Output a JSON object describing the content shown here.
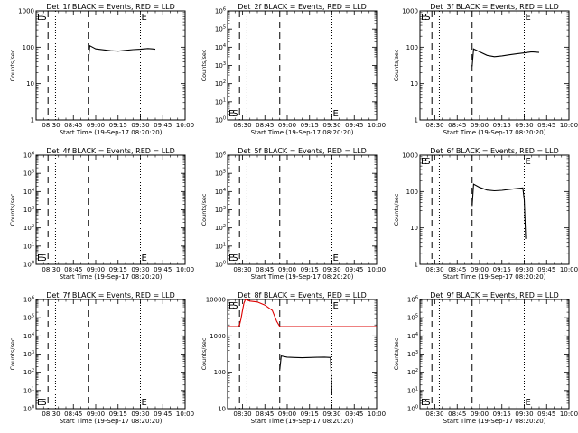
{
  "chart_data": [
    {
      "type": "line",
      "title": "Det_1f BLACK = Events, RED = LLD",
      "xlabel": "Start Time (19-Sep-17 08:20:20)",
      "ylabel": "Counts/sec",
      "yscale": "log",
      "ylim": [
        1,
        1000
      ],
      "yticks": [
        1,
        10,
        100,
        1000
      ],
      "ytick_labels": [
        "1",
        "10",
        "100",
        "1000"
      ],
      "xticks": [
        30,
        45,
        60,
        75,
        90,
        105,
        120
      ],
      "xtick_labels": [
        "08:30",
        "08:45",
        "09:00",
        "09:15",
        "09:30",
        "09:45",
        "10:00"
      ],
      "xlim": [
        20,
        120
      ],
      "dashed_lines": [
        28,
        55
      ],
      "dotted_lines": [
        33,
        90
      ],
      "S": 28,
      "E": 90,
      "S_low": false,
      "E_low": false,
      "series": [
        {
          "color": "#000000",
          "x": [
            55,
            56,
            60,
            65,
            70,
            75,
            80,
            85,
            90,
            95,
            98,
            100
          ],
          "y": [
            40,
            110,
            90,
            85,
            80,
            78,
            82,
            86,
            88,
            92,
            90,
            88
          ]
        }
      ]
    },
    {
      "type": "line",
      "title": "Det_2f BLACK = Events, RED = LLD",
      "xlabel": "Start Time (19-Sep-17 08:20:20)",
      "ylabel": "Counts/sec",
      "yscale": "log",
      "ylim": [
        1,
        1000000
      ],
      "yticks": [
        1,
        10,
        100,
        1000,
        10000,
        100000,
        1000000
      ],
      "ytick_labels": [
        "10^0",
        "10^1",
        "10^2",
        "10^3",
        "10^4",
        "10^5",
        "10^6"
      ],
      "xticks": [
        30,
        45,
        60,
        75,
        90,
        105,
        120
      ],
      "xtick_labels": [
        "08:30",
        "08:45",
        "09:00",
        "09:15",
        "09:30",
        "09:45",
        "10:00"
      ],
      "xlim": [
        20,
        120
      ],
      "dashed_lines": [
        28,
        55
      ],
      "dotted_lines": [
        33,
        90
      ],
      "S": 28,
      "E": 90,
      "S_low": true,
      "E_low": true,
      "series": []
    },
    {
      "type": "line",
      "title": "Det_3f BLACK = Events, RED = LLD",
      "xlabel": "Start Time (19-Sep-17 08:20:20)",
      "ylabel": "Counts/sec",
      "yscale": "log",
      "ylim": [
        1,
        1000
      ],
      "yticks": [
        1,
        10,
        100,
        1000
      ],
      "ytick_labels": [
        "1",
        "10",
        "100",
        "1000"
      ],
      "xticks": [
        30,
        45,
        60,
        75,
        90,
        105,
        120
      ],
      "xtick_labels": [
        "08:30",
        "08:45",
        "09:00",
        "09:15",
        "09:30",
        "09:45",
        "10:00"
      ],
      "xlim": [
        20,
        120
      ],
      "dashed_lines": [
        28,
        55
      ],
      "dotted_lines": [
        33,
        90
      ],
      "S": 28,
      "E": 90,
      "S_low": false,
      "E_low": false,
      "series": [
        {
          "color": "#000000",
          "x": [
            55,
            56,
            60,
            65,
            70,
            75,
            80,
            85,
            90,
            95,
            100
          ],
          "y": [
            30,
            90,
            75,
            60,
            55,
            58,
            62,
            66,
            70,
            75,
            72
          ]
        }
      ]
    },
    {
      "type": "line",
      "title": "Det_4f BLACK = Events, RED = LLD",
      "xlabel": "Start Time (19-Sep-17 08:20:20)",
      "ylabel": "Counts/sec",
      "yscale": "log",
      "ylim": [
        1,
        1000000
      ],
      "yticks": [
        1,
        10,
        100,
        1000,
        10000,
        100000,
        1000000
      ],
      "ytick_labels": [
        "10^0",
        "10^1",
        "10^2",
        "10^3",
        "10^4",
        "10^5",
        "10^6"
      ],
      "xticks": [
        30,
        45,
        60,
        75,
        90,
        105,
        120
      ],
      "xtick_labels": [
        "08:30",
        "08:45",
        "09:00",
        "09:15",
        "09:30",
        "09:45",
        "10:00"
      ],
      "xlim": [
        20,
        120
      ],
      "dashed_lines": [
        28,
        55
      ],
      "dotted_lines": [
        33,
        90
      ],
      "S": 28,
      "E": 90,
      "S_low": true,
      "E_low": true,
      "series": []
    },
    {
      "type": "line",
      "title": "Det_5f BLACK = Events, RED = LLD",
      "xlabel": "Start Time (19-Sep-17 08:20:20)",
      "ylabel": "Counts/sec",
      "yscale": "log",
      "ylim": [
        1,
        1000000
      ],
      "yticks": [
        1,
        10,
        100,
        1000,
        10000,
        100000,
        1000000
      ],
      "ytick_labels": [
        "10^0",
        "10^1",
        "10^2",
        "10^3",
        "10^4",
        "10^5",
        "10^6"
      ],
      "xticks": [
        30,
        45,
        60,
        75,
        90,
        105,
        120
      ],
      "xtick_labels": [
        "08:30",
        "08:45",
        "09:00",
        "09:15",
        "09:30",
        "09:45",
        "10:00"
      ],
      "xlim": [
        20,
        120
      ],
      "dashed_lines": [
        28,
        55
      ],
      "dotted_lines": [
        33,
        90
      ],
      "S": 28,
      "E": 90,
      "S_low": true,
      "E_low": true,
      "series": []
    },
    {
      "type": "line",
      "title": "Det_6f BLACK = Events, RED = LLD",
      "xlabel": "Start Time (19-Sep-17 08:20:20)",
      "ylabel": "Counts/sec",
      "yscale": "log",
      "ylim": [
        1,
        1000
      ],
      "yticks": [
        1,
        10,
        100,
        1000
      ],
      "ytick_labels": [
        "1",
        "10",
        "100",
        "1000"
      ],
      "xticks": [
        30,
        45,
        60,
        75,
        90,
        105,
        120
      ],
      "xtick_labels": [
        "08:30",
        "08:45",
        "09:00",
        "09:15",
        "09:30",
        "09:45",
        "10:00"
      ],
      "xlim": [
        20,
        120
      ],
      "dashed_lines": [
        28,
        55
      ],
      "dotted_lines": [
        33,
        90
      ],
      "S": 28,
      "E": 90,
      "S_low": false,
      "E_low": false,
      "series": [
        {
          "color": "#000000",
          "x": [
            55,
            56,
            60,
            65,
            70,
            75,
            80,
            85,
            89,
            90,
            91
          ],
          "y": [
            40,
            160,
            130,
            110,
            105,
            108,
            115,
            120,
            125,
            60,
            5
          ]
        }
      ]
    },
    {
      "type": "line",
      "title": "Det_7f BLACK = Events, RED = LLD",
      "xlabel": "Start Time (19-Sep-17 08:20:20)",
      "ylabel": "Counts/sec",
      "yscale": "log",
      "ylim": [
        1,
        1000000
      ],
      "yticks": [
        1,
        10,
        100,
        1000,
        10000,
        100000,
        1000000
      ],
      "ytick_labels": [
        "10^0",
        "10^1",
        "10^2",
        "10^3",
        "10^4",
        "10^5",
        "10^6"
      ],
      "xticks": [
        30,
        45,
        60,
        75,
        90,
        105,
        120
      ],
      "xtick_labels": [
        "08:30",
        "08:45",
        "09:00",
        "09:15",
        "09:30",
        "09:45",
        "10:00"
      ],
      "xlim": [
        20,
        120
      ],
      "dashed_lines": [
        28,
        55
      ],
      "dotted_lines": [
        33,
        90
      ],
      "S": 28,
      "E": 90,
      "S_low": true,
      "E_low": true,
      "series": []
    },
    {
      "type": "line",
      "title": "Det_8f BLACK = Events, RED = LLD",
      "xlabel": "Start Time (19-Sep-17 08:20:20)",
      "ylabel": "Counts/sec",
      "yscale": "log",
      "ylim": [
        10,
        10000
      ],
      "yticks": [
        10,
        100,
        1000,
        10000
      ],
      "ytick_labels": [
        "10",
        "100",
        "1000",
        "10000"
      ],
      "xticks": [
        30,
        45,
        60,
        75,
        90,
        105,
        120
      ],
      "xtick_labels": [
        "08:30",
        "08:45",
        "09:00",
        "09:15",
        "09:30",
        "09:45",
        "10:00"
      ],
      "xlim": [
        20,
        120
      ],
      "dashed_lines": [
        28,
        55
      ],
      "dotted_lines": [
        33,
        90
      ],
      "S": 28,
      "E": 90,
      "S_low": false,
      "E_low": false,
      "series": [
        {
          "color": "#000000",
          "x": [
            55,
            56,
            60,
            65,
            70,
            75,
            80,
            85,
            89,
            90
          ],
          "y": [
            120,
            280,
            260,
            255,
            250,
            255,
            258,
            260,
            255,
            25
          ]
        },
        {
          "color": "#dd0000",
          "x": [
            20,
            24,
            27,
            28,
            29,
            30,
            31,
            32,
            35,
            40,
            45,
            50,
            53,
            55,
            57,
            60,
            70,
            80,
            90,
            100,
            110,
            120
          ],
          "y": [
            1800,
            1800,
            1800,
            2000,
            3000,
            5000,
            8000,
            10000,
            9000,
            8500,
            7000,
            5000,
            2500,
            1800,
            1800,
            1800,
            1800,
            1800,
            1800,
            1800,
            1800,
            1800
          ]
        }
      ]
    },
    {
      "type": "line",
      "title": "Det_9f BLACK = Events, RED = LLD",
      "xlabel": "Start Time (19-Sep-17 08:20:20)",
      "ylabel": "Counts/sec",
      "yscale": "log",
      "ylim": [
        1,
        1000000
      ],
      "yticks": [
        1,
        10,
        100,
        1000,
        10000,
        100000,
        1000000
      ],
      "ytick_labels": [
        "10^0",
        "10^1",
        "10^2",
        "10^3",
        "10^4",
        "10^5",
        "10^6"
      ],
      "xticks": [
        30,
        45,
        60,
        75,
        90,
        105,
        120
      ],
      "xtick_labels": [
        "08:30",
        "08:45",
        "09:00",
        "09:15",
        "09:30",
        "09:45",
        "10:00"
      ],
      "xlim": [
        20,
        120
      ],
      "dashed_lines": [
        28,
        55
      ],
      "dotted_lines": [
        33,
        90
      ],
      "S": 28,
      "E": 90,
      "S_low": true,
      "E_low": true,
      "series": []
    }
  ]
}
